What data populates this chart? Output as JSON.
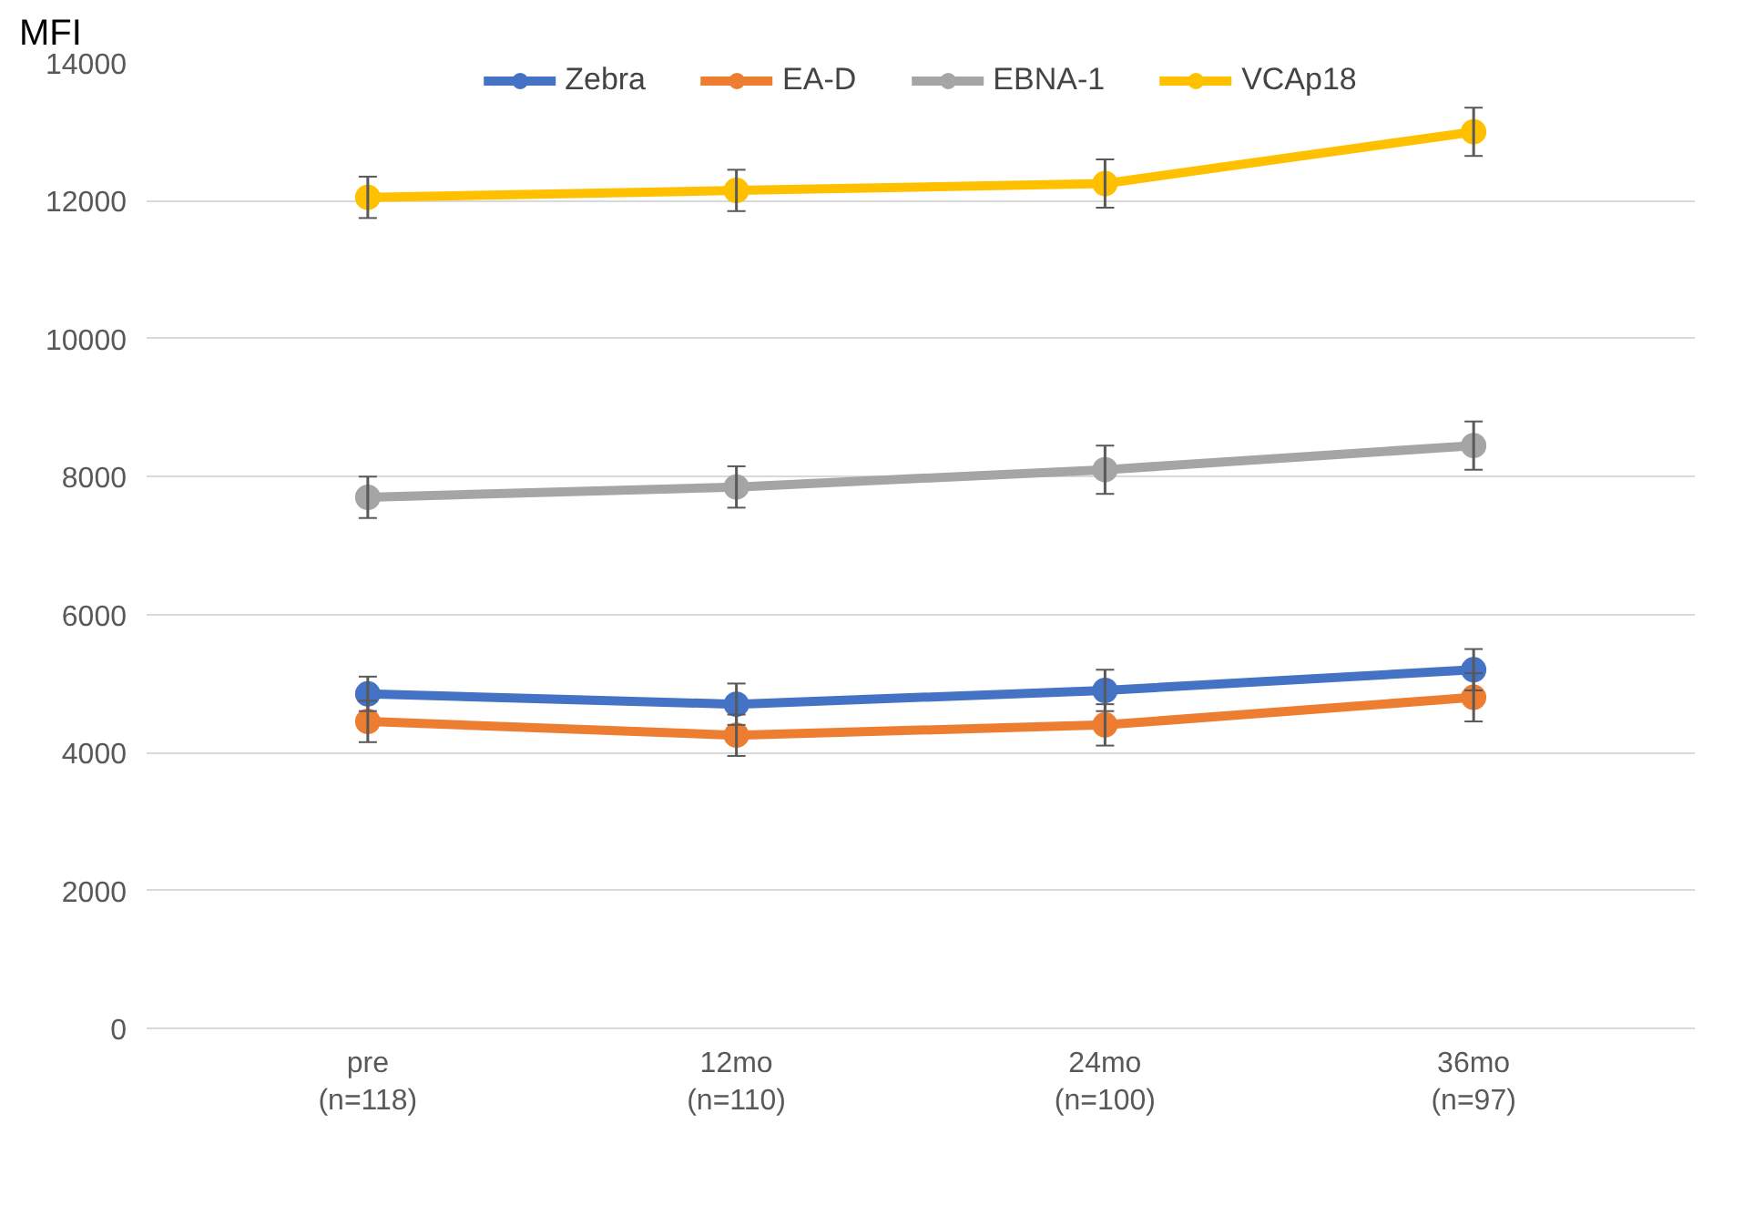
{
  "chart_data": {
    "type": "line",
    "ylabel": "MFI",
    "categories": [
      "pre\n(n=118)",
      "12mo\n(n=110)",
      "24mo\n(n=100)",
      "36mo\n(n=97)"
    ],
    "ylim": [
      0,
      14000
    ],
    "yticks": [
      0,
      2000,
      4000,
      6000,
      8000,
      10000,
      12000,
      14000
    ],
    "grid": "y",
    "legend": "top",
    "marker": "circle",
    "line_style": "solid",
    "series": [
      {
        "name": "Zebra",
        "color": "#4472c4",
        "values": [
          4850,
          4700,
          4900,
          5200
        ],
        "errors": [
          250,
          300,
          300,
          300
        ]
      },
      {
        "name": "EA-D",
        "color": "#ed7d31",
        "values": [
          4450,
          4250,
          4400,
          4800
        ],
        "errors": [
          300,
          300,
          300,
          350
        ]
      },
      {
        "name": "EBNA-1",
        "color": "#a5a5a5",
        "values": [
          7700,
          7850,
          8100,
          8450
        ],
        "errors": [
          300,
          300,
          350,
          350
        ]
      },
      {
        "name": "VCAp18",
        "color": "#ffc000",
        "values": [
          12050,
          12150,
          12250,
          13000
        ],
        "errors": [
          300,
          300,
          350,
          350
        ]
      }
    ]
  }
}
